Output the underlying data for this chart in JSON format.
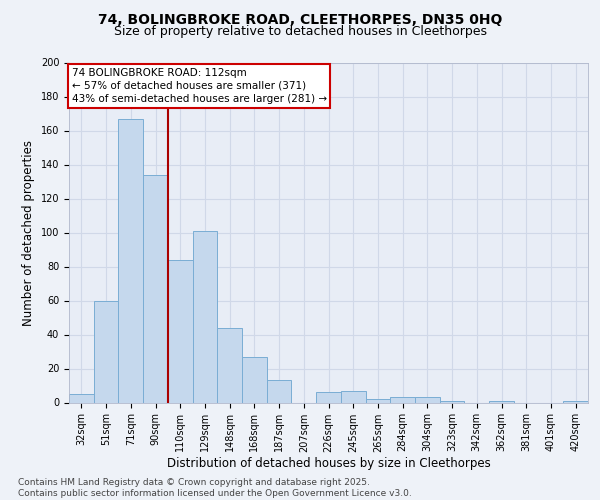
{
  "title_line1": "74, BOLINGBROKE ROAD, CLEETHORPES, DN35 0HQ",
  "title_line2": "Size of property relative to detached houses in Cleethorpes",
  "xlabel": "Distribution of detached houses by size in Cleethorpes",
  "ylabel": "Number of detached properties",
  "categories": [
    "32sqm",
    "51sqm",
    "71sqm",
    "90sqm",
    "110sqm",
    "129sqm",
    "148sqm",
    "168sqm",
    "187sqm",
    "207sqm",
    "226sqm",
    "245sqm",
    "265sqm",
    "284sqm",
    "304sqm",
    "323sqm",
    "342sqm",
    "362sqm",
    "381sqm",
    "401sqm",
    "420sqm"
  ],
  "values": [
    5,
    60,
    167,
    134,
    84,
    101,
    44,
    27,
    13,
    0,
    6,
    7,
    2,
    3,
    3,
    1,
    0,
    1,
    0,
    0,
    1
  ],
  "bar_color": "#c5d8ed",
  "bar_edge_color": "#7aadd4",
  "reference_line_index": 4,
  "reference_line_color": "#aa0000",
  "annotation_text": "74 BOLINGBROKE ROAD: 112sqm\n← 57% of detached houses are smaller (371)\n43% of semi-detached houses are larger (281) →",
  "annotation_box_color": "#ffffff",
  "annotation_box_edge_color": "#cc0000",
  "ylim": [
    0,
    200
  ],
  "yticks": [
    0,
    20,
    40,
    60,
    80,
    100,
    120,
    140,
    160,
    180,
    200
  ],
  "footer_text": "Contains HM Land Registry data © Crown copyright and database right 2025.\nContains public sector information licensed under the Open Government Licence v3.0.",
  "background_color": "#eef2f8",
  "plot_bg_color": "#e8edf6",
  "grid_color": "#d0d8e8",
  "title_fontsize": 10,
  "subtitle_fontsize": 9,
  "axis_label_fontsize": 8.5,
  "tick_fontsize": 7,
  "annotation_fontsize": 7.5,
  "footer_fontsize": 6.5
}
